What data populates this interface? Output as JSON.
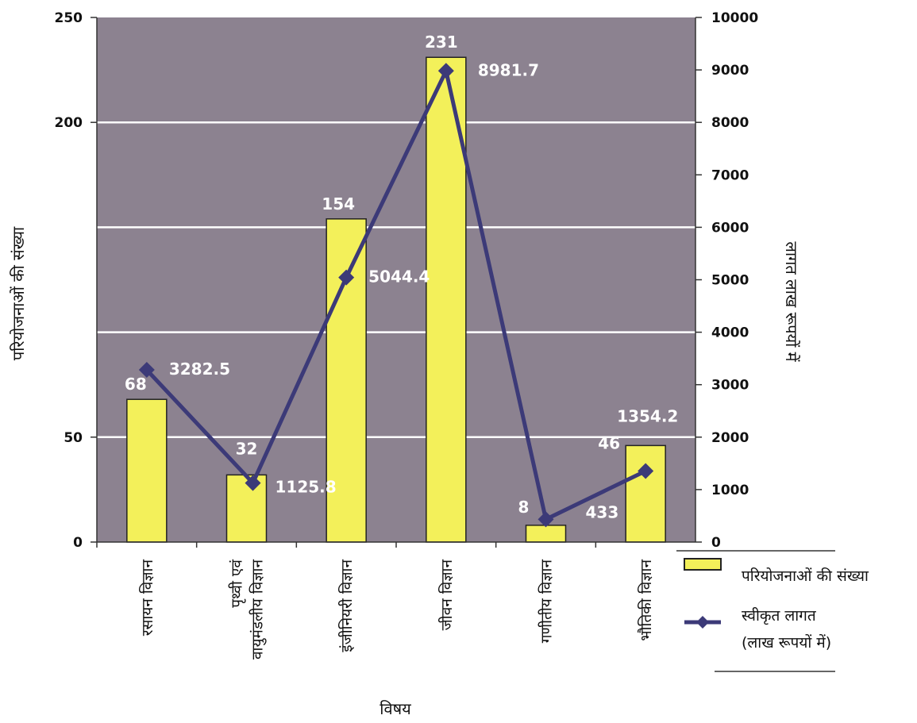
{
  "chart_data": {
    "type": "bar",
    "categories": [
      [
        "रसायन विज्ञान"
      ],
      [
        "पृथ्वी एवं",
        "वायुमंडलीय विज्ञान"
      ],
      [
        "इंजीनियरी विज्ञान"
      ],
      [
        "जीवन विज्ञान"
      ],
      [
        "गणीतीय विज्ञान"
      ],
      [
        "भौतिकी विज्ञान"
      ]
    ],
    "series": [
      {
        "name": "परियोजनाओं की संख्या",
        "type": "bar",
        "axis": "left",
        "values": [
          68,
          32,
          154,
          231,
          8,
          46
        ],
        "labels": [
          "68",
          "32",
          "154",
          "231",
          "8",
          "46"
        ],
        "color": "#f3f05a"
      },
      {
        "name": [
          "स्वीकृत लागत",
          "(लाख रूपयों में)"
        ],
        "type": "line",
        "axis": "right",
        "values": [
          3282.5,
          1125.8,
          5044.4,
          8981.7,
          433,
          1354.2
        ],
        "labels": [
          "3282.5",
          "1125.8",
          "5044.4",
          "8981.7",
          "433",
          "1354.2"
        ],
        "color": "#3c3a78"
      }
    ],
    "xlabel": "विषय",
    "ylabel_left": "परियोजनाओं की संख्या",
    "ylabel_right": "लागत लाख रूपयों में",
    "ylim_left": [
      0,
      250
    ],
    "yticks_left": [
      0,
      50,
      200,
      250
    ],
    "ylim_right": [
      0,
      10000
    ],
    "yticks_right": [
      0,
      1000,
      2000,
      3000,
      4000,
      5000,
      6000,
      7000,
      8000,
      9000,
      10000
    ],
    "gridlines_left": [
      50,
      100,
      150,
      200
    ],
    "plot_background": "#8c8290",
    "grid": true,
    "legend": "bottom-right"
  }
}
